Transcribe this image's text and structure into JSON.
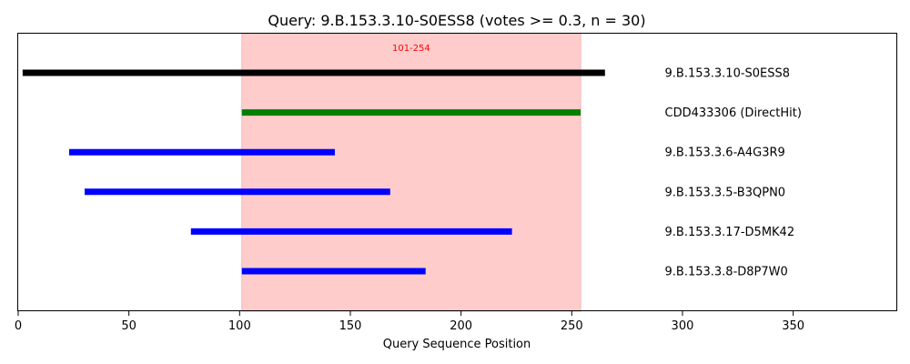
{
  "chart_data": {
    "type": "range-bars",
    "title": "Query: 9.B.153.3.10-S0ESS8 (votes >= 0.3, n = 30)",
    "xlabel": "Query Sequence Position",
    "ylabel": "",
    "xlim": [
      0,
      397
    ],
    "xticks": [
      0,
      50,
      100,
      150,
      200,
      250,
      300,
      350
    ],
    "grid": false,
    "highlight": {
      "start": 101,
      "end": 254,
      "label": "101-254",
      "color": "#ffcccc",
      "label_color": "#ff0000"
    },
    "label_x": 292,
    "series": [
      {
        "name": "9.B.153.3.10-S0ESS8",
        "start": 2,
        "end": 265,
        "color": "#000000"
      },
      {
        "name": "CDD433306 (DirectHit)",
        "start": 101,
        "end": 254,
        "color": "#008000"
      },
      {
        "name": "9.B.153.3.6-A4G3R9",
        "start": 23,
        "end": 143,
        "color": "#0000ff"
      },
      {
        "name": "9.B.153.3.5-B3QPN0",
        "start": 30,
        "end": 168,
        "color": "#0000ff"
      },
      {
        "name": "9.B.153.3.17-D5MK42",
        "start": 78,
        "end": 223,
        "color": "#0000ff"
      },
      {
        "name": "9.B.153.3.8-D8P7W0",
        "start": 101,
        "end": 184,
        "color": "#0000ff"
      }
    ]
  }
}
